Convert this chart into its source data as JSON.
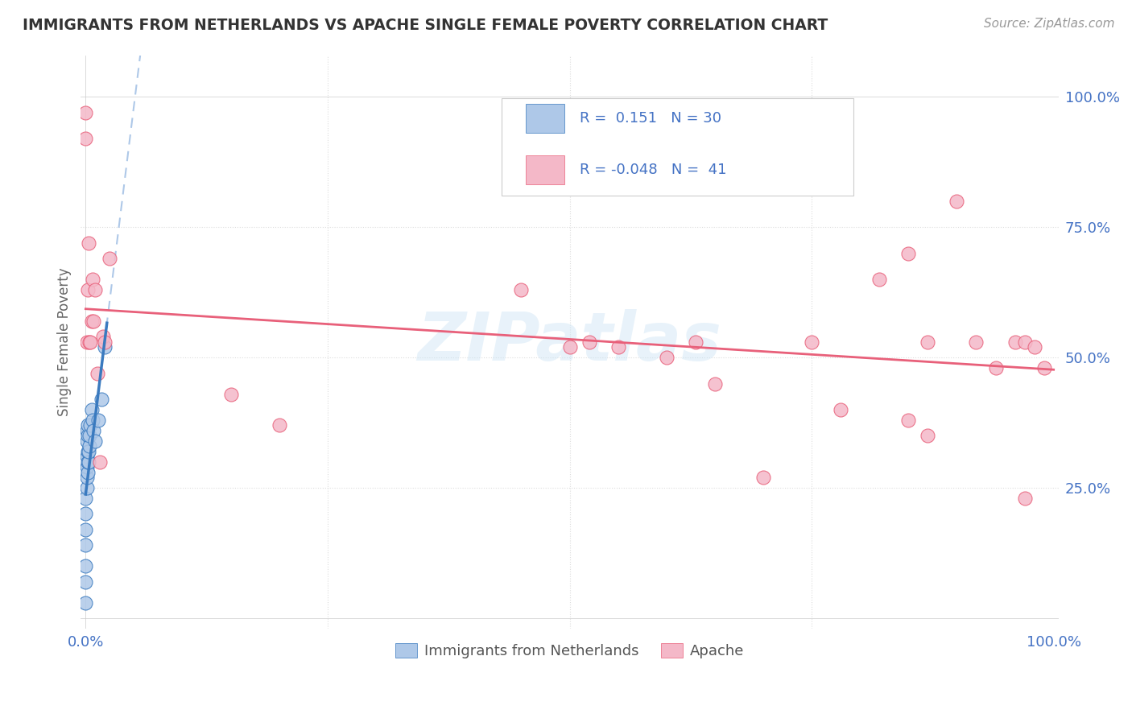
{
  "title": "IMMIGRANTS FROM NETHERLANDS VS APACHE SINGLE FEMALE POVERTY CORRELATION CHART",
  "source": "Source: ZipAtlas.com",
  "ylabel": "Single Female Poverty",
  "legend_label1": "Immigrants from Netherlands",
  "legend_label2": "Apache",
  "r1": 0.151,
  "n1": 30,
  "r2": -0.048,
  "n2": 41,
  "blue_color": "#aec8e8",
  "pink_color": "#f4b8c8",
  "blue_line_color": "#3a7abf",
  "pink_line_color": "#e8607a",
  "dashed_line_color": "#aec8e8",
  "watermark": "ZIPatlas",
  "blue_points_x": [
    0.0,
    0.0,
    0.0,
    0.0,
    0.0,
    0.0,
    0.0,
    0.001,
    0.001,
    0.001,
    0.001,
    0.001,
    0.001,
    0.002,
    0.002,
    0.002,
    0.002,
    0.002,
    0.003,
    0.003,
    0.004,
    0.004,
    0.005,
    0.006,
    0.007,
    0.008,
    0.01,
    0.013,
    0.016,
    0.02
  ],
  "blue_points_y": [
    0.03,
    0.07,
    0.1,
    0.14,
    0.17,
    0.2,
    0.23,
    0.25,
    0.27,
    0.29,
    0.31,
    0.34,
    0.36,
    0.28,
    0.3,
    0.32,
    0.35,
    0.37,
    0.3,
    0.32,
    0.33,
    0.35,
    0.37,
    0.4,
    0.38,
    0.36,
    0.34,
    0.38,
    0.42,
    0.52
  ],
  "pink_points_x": [
    0.0,
    0.0,
    0.001,
    0.002,
    0.003,
    0.004,
    0.005,
    0.006,
    0.007,
    0.008,
    0.01,
    0.012,
    0.015,
    0.018,
    0.02,
    0.025,
    0.15,
    0.2,
    0.45,
    0.5,
    0.52,
    0.55,
    0.6,
    0.63,
    0.65,
    0.7,
    0.75,
    0.78,
    0.82,
    0.85,
    0.87,
    0.9,
    0.92,
    0.94,
    0.96,
    0.97,
    0.98,
    0.99,
    0.85,
    0.87,
    0.97
  ],
  "pink_points_y": [
    0.92,
    0.97,
    0.53,
    0.63,
    0.72,
    0.53,
    0.53,
    0.57,
    0.65,
    0.57,
    0.63,
    0.47,
    0.3,
    0.54,
    0.53,
    0.69,
    0.43,
    0.37,
    0.63,
    0.52,
    0.53,
    0.52,
    0.5,
    0.53,
    0.45,
    0.27,
    0.53,
    0.4,
    0.65,
    0.7,
    0.53,
    0.8,
    0.53,
    0.48,
    0.53,
    0.53,
    0.52,
    0.48,
    0.38,
    0.35,
    0.23
  ],
  "background_color": "#ffffff",
  "grid_color": "#e8e8e8",
  "tick_color": "#4472c4",
  "title_color": "#333333",
  "source_color": "#999999",
  "ylabel_color": "#666666"
}
